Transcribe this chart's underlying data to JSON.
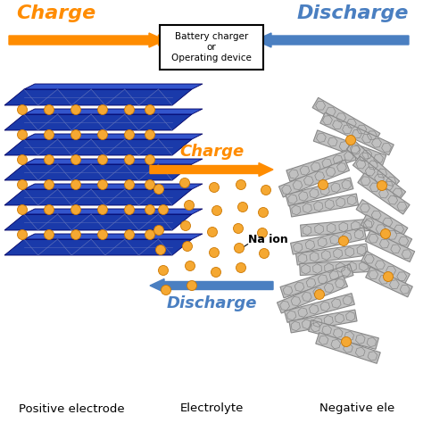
{
  "background_color": "#ffffff",
  "charge_color": "#FF8C00",
  "discharge_color": "#4a7fc1",
  "na_ion_color": "#F5A832",
  "na_ion_edge": "#CC7700",
  "blue_color": "#1a3aaa",
  "blue_light": "#3355cc",
  "blue_top": "#4466ee",
  "gray_color": "#c0c0c0",
  "gray_dark": "#888888",
  "gray_light": "#d8d8d8",
  "box_text": "Battery charger\nor\nOperating device",
  "charge_label": "Charge",
  "discharge_label": "Discharge",
  "positive_label": "Positive electrode",
  "negative_label": "Negative ele",
  "electrolyte_label": "Electrolyte",
  "na_ion_label": "Na ion"
}
